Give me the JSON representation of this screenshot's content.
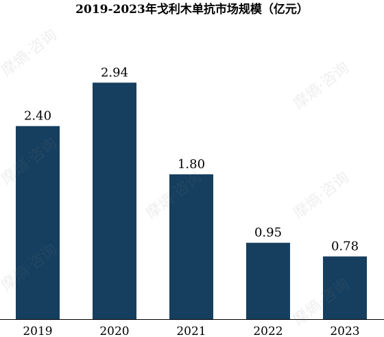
{
  "chart_data": {
    "type": "bar",
    "title": "2019-2023年戈利木单抗市场规模（亿元）",
    "categories": [
      "2019",
      "2020",
      "2021",
      "2022",
      "2023"
    ],
    "series": [
      {
        "values": [
          2.4,
          2.94,
          1.8,
          0.95,
          0.78
        ],
        "labels": [
          "2.40",
          "2.94",
          "1.80",
          "0.95",
          "0.78"
        ]
      }
    ],
    "ylim": [
      0,
      3.25
    ],
    "xlabel": "",
    "ylabel": "",
    "grid": false,
    "legend": "none",
    "colors": {
      "bar": "#163f5f",
      "axis": "#000000"
    }
  },
  "watermark": {
    "text": "摩熵·咨询"
  }
}
